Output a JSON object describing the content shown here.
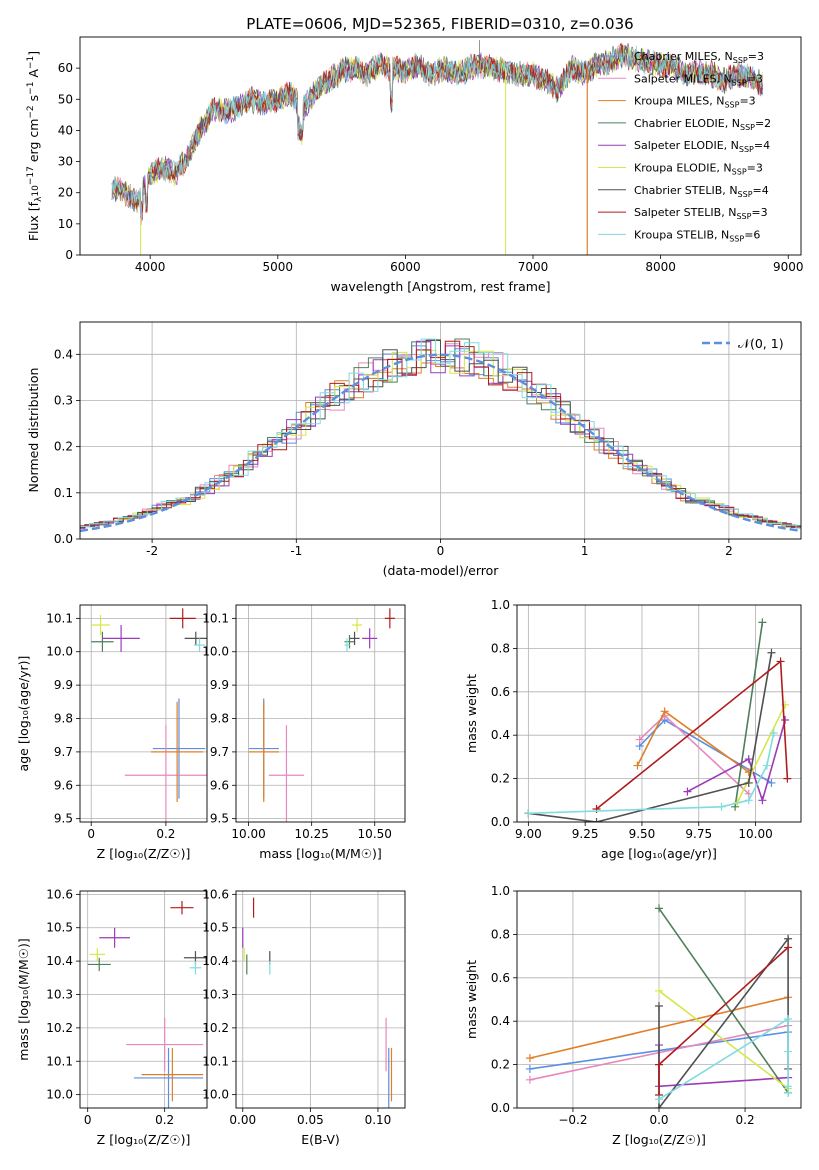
{
  "title": "PLATE=0606, MJD=52365, FIBERID=0310, z=0.036",
  "colors": {
    "Chabrier MILES": "#5b8fe0",
    "Salpeter MILES": "#e887bd",
    "Kroupa MILES": "#e07f27",
    "Chabrier ELODIE": "#4f7f5a",
    "Salpeter ELODIE": "#9b3ab8",
    "Kroupa ELODIE": "#d7e64a",
    "Chabrier STELIB": "#505050",
    "Salpeter STELIB": "#b01c1c",
    "Kroupa STELIB": "#7fdce0"
  },
  "chart_data": [
    {
      "id": "spectrum",
      "type": "line",
      "xlabel": "wavelength [Angstrom, rest frame]",
      "ylabel_main": "Flux [f",
      "ylabel_sub": "λ",
      "ylabel_mid": "10",
      "ylabel_sup1": "−17",
      "ylabel_rest": " erg cm",
      "ylabel_sup2": "−2",
      "ylabel_rest2": " s",
      "ylabel_sup3": "−1",
      "ylabel_rest3": " A",
      "ylabel_sup4": "−1",
      "ylabel_end": "]",
      "xlim": [
        3450,
        9100
      ],
      "ylim": [
        0,
        70
      ],
      "xticks": [
        4000,
        5000,
        6000,
        7000,
        8000,
        9000
      ],
      "yticks": [
        0,
        10,
        20,
        30,
        40,
        50,
        60
      ],
      "continuum": [
        [
          3700,
          22
        ],
        [
          3800,
          20
        ],
        [
          3900,
          17
        ],
        [
          4000,
          26
        ],
        [
          4100,
          28
        ],
        [
          4200,
          26
        ],
        [
          4300,
          32
        ],
        [
          4400,
          41
        ],
        [
          4500,
          47
        ],
        [
          4600,
          46
        ],
        [
          4700,
          48
        ],
        [
          4800,
          50
        ],
        [
          4900,
          48
        ],
        [
          5000,
          50
        ],
        [
          5100,
          52
        ],
        [
          5200,
          47
        ],
        [
          5300,
          53
        ],
        [
          5400,
          56
        ],
        [
          5500,
          59
        ],
        [
          5600,
          60
        ],
        [
          5700,
          58
        ],
        [
          5800,
          61
        ],
        [
          5900,
          60
        ],
        [
          6000,
          59
        ],
        [
          6100,
          61
        ],
        [
          6200,
          58
        ],
        [
          6300,
          60
        ],
        [
          6400,
          58
        ],
        [
          6500,
          60
        ],
        [
          6600,
          61
        ],
        [
          6700,
          60
        ],
        [
          6800,
          59
        ],
        [
          6900,
          58
        ],
        [
          7000,
          58
        ],
        [
          7100,
          56
        ],
        [
          7200,
          53
        ],
        [
          7300,
          60
        ],
        [
          7400,
          58
        ],
        [
          7500,
          61
        ],
        [
          7600,
          62
        ],
        [
          7700,
          64
        ],
        [
          7800,
          63
        ],
        [
          7900,
          62
        ],
        [
          8000,
          61
        ],
        [
          8100,
          61
        ],
        [
          8200,
          58
        ],
        [
          8300,
          59
        ],
        [
          8400,
          58
        ],
        [
          8500,
          56
        ],
        [
          8600,
          58
        ],
        [
          8700,
          57
        ],
        [
          8800,
          55
        ]
      ],
      "legend": [
        {
          "name": "Chabrier MILES",
          "nssp": "3",
          "color": "#5b8fe0"
        },
        {
          "name": "Salpeter MILES",
          "nssp": "3",
          "color": "#e887bd"
        },
        {
          "name": "Kroupa MILES",
          "nssp": "3",
          "color": "#e07f27"
        },
        {
          "name": "Chabrier ELODIE",
          "nssp": "2",
          "color": "#4f7f5a"
        },
        {
          "name": "Salpeter ELODIE",
          "nssp": "4",
          "color": "#9b3ab8"
        },
        {
          "name": "Kroupa ELODIE",
          "nssp": "3",
          "color": "#d7e64a"
        },
        {
          "name": "Chabrier STELIB",
          "nssp": "4",
          "color": "#505050"
        },
        {
          "name": "Salpeter STELIB",
          "nssp": "3",
          "color": "#b01c1c"
        },
        {
          "name": "Kroupa STELIB",
          "nssp": "6",
          "color": "#7fdce0"
        }
      ],
      "legend_prefix": "N",
      "legend_sub": "SSP",
      "legend_eq": "="
    },
    {
      "id": "residuals",
      "type": "step",
      "xlabel": "(data-model)/error",
      "ylabel": "Normed distribution",
      "xlim": [
        -2.5,
        2.5
      ],
      "ylim": [
        0,
        0.47
      ],
      "xticks": [
        -2,
        -1,
        0,
        1,
        2
      ],
      "yticks": [
        0.0,
        0.1,
        0.2,
        0.3,
        0.4
      ],
      "legend": "𝒩(0, 1)",
      "normal_curve": {
        "mean": 0,
        "std": 1,
        "color": "#5b8fe0"
      }
    },
    {
      "id": "age-vs-Z",
      "type": "errorbar",
      "xlabel": "Z [log₁₀(Z/Z☉)]",
      "ylabel": "age  [log₁₀(age/yr)]",
      "xlim": [
        -0.03,
        0.31
      ],
      "ylim": [
        9.49,
        10.14
      ],
      "xticks": [
        0.0,
        0.2
      ],
      "yticks": [
        9.5,
        9.6,
        9.7,
        9.8,
        9.9,
        10.0,
        10.1
      ],
      "points": [
        {
          "series": "Chabrier MILES",
          "x": 0.235,
          "y": 9.71,
          "xerr": 0.07,
          "yerr": 0.15
        },
        {
          "series": "Salpeter MILES",
          "x": 0.2,
          "y": 9.63,
          "xerr": 0.11,
          "yerr": 0.15
        },
        {
          "series": "Kroupa MILES",
          "x": 0.23,
          "y": 9.7,
          "xerr": 0.07,
          "yerr": 0.15
        },
        {
          "series": "Chabrier ELODIE",
          "x": 0.03,
          "y": 10.03,
          "xerr": 0.03,
          "yerr": 0.03
        },
        {
          "series": "Salpeter ELODIE",
          "x": 0.08,
          "y": 10.04,
          "xerr": 0.05,
          "yerr": 0.04
        },
        {
          "series": "Kroupa ELODIE",
          "x": 0.025,
          "y": 10.08,
          "xerr": 0.025,
          "yerr": 0.03
        },
        {
          "series": "Chabrier STELIB",
          "x": 0.28,
          "y": 10.04,
          "xerr": 0.03,
          "yerr": 0.02
        },
        {
          "series": "Salpeter STELIB",
          "x": 0.245,
          "y": 10.1,
          "xerr": 0.035,
          "yerr": 0.03
        },
        {
          "series": "Kroupa STELIB",
          "x": 0.29,
          "y": 10.02,
          "xerr": 0.015,
          "yerr": 0.02
        }
      ]
    },
    {
      "id": "age-vs-mass",
      "type": "errorbar",
      "xlabel": "mass [log₁₀(M/M☉)]",
      "xlim": [
        9.95,
        10.62
      ],
      "ylim": [
        9.49,
        10.14
      ],
      "xticks": [
        10.0,
        10.25,
        10.5
      ],
      "xtick_labels": [
        "10.00",
        "10.25",
        "10.50"
      ],
      "yticks": [
        9.5,
        9.6,
        9.7,
        9.8,
        9.9,
        10.0,
        10.1
      ],
      "points": [
        {
          "series": "Chabrier MILES",
          "x": 10.06,
          "y": 9.71,
          "xerr": 0.06,
          "yerr": 0.15
        },
        {
          "series": "Salpeter MILES",
          "x": 10.15,
          "y": 9.63,
          "xerr": 0.07,
          "yerr": 0.15
        },
        {
          "series": "Kroupa MILES",
          "x": 10.06,
          "y": 9.7,
          "xerr": 0.06,
          "yerr": 0.15
        },
        {
          "series": "Chabrier ELODIE",
          "x": 10.4,
          "y": 10.03,
          "xerr": 0.02,
          "yerr": 0.02
        },
        {
          "series": "Salpeter ELODIE",
          "x": 10.48,
          "y": 10.04,
          "xerr": 0.03,
          "yerr": 0.03
        },
        {
          "series": "Kroupa ELODIE",
          "x": 10.43,
          "y": 10.08,
          "xerr": 0.02,
          "yerr": 0.02
        },
        {
          "series": "Chabrier STELIB",
          "x": 10.42,
          "y": 10.04,
          "xerr": 0.02,
          "yerr": 0.02
        },
        {
          "series": "Salpeter STELIB",
          "x": 10.56,
          "y": 10.1,
          "xerr": 0.02,
          "yerr": 0.03
        },
        {
          "series": "Kroupa STELIB",
          "x": 10.39,
          "y": 10.02,
          "xerr": 0.01,
          "yerr": 0.02
        }
      ]
    },
    {
      "id": "massweight-vs-age",
      "type": "line",
      "xlabel": "age  [log₁₀(age/yr)]",
      "ylabel": "mass weight",
      "xlim": [
        8.95,
        10.2
      ],
      "ylim": [
        0,
        1.0
      ],
      "xticks": [
        9.0,
        9.25,
        9.5,
        9.75,
        10.0
      ],
      "xtick_labels": [
        "9.00",
        "9.25",
        "9.50",
        "9.75",
        "10.00"
      ],
      "yticks": [
        0.0,
        0.2,
        0.4,
        0.6,
        0.8,
        1.0
      ],
      "series": [
        {
          "name": "Chabrier MILES",
          "x": [
            9.49,
            9.6,
            10.07
          ],
          "y": [
            0.35,
            0.47,
            0.18
          ]
        },
        {
          "name": "Salpeter MILES",
          "x": [
            9.49,
            9.6,
            9.97
          ],
          "y": [
            0.38,
            0.49,
            0.13
          ]
        },
        {
          "name": "Kroupa MILES",
          "x": [
            9.48,
            9.6,
            9.97
          ],
          "y": [
            0.26,
            0.51,
            0.23
          ]
        },
        {
          "name": "Chabrier ELODIE",
          "x": [
            9.91,
            10.03
          ],
          "y": [
            0.07,
            0.92
          ]
        },
        {
          "name": "Salpeter ELODIE",
          "x": [
            9.7,
            9.97,
            10.03,
            10.13
          ],
          "y": [
            0.14,
            0.29,
            0.1,
            0.47
          ]
        },
        {
          "name": "Kroupa ELODIE",
          "x": [
            9.92,
            10.13
          ],
          "y": [
            0.09,
            0.54
          ]
        },
        {
          "name": "Chabrier STELIB",
          "x": [
            9.0,
            9.3,
            9.97,
            10.07
          ],
          "y": [
            0.04,
            0.0,
            0.18,
            0.78
          ]
        },
        {
          "name": "Salpeter STELIB",
          "x": [
            9.3,
            10.11,
            10.14
          ],
          "y": [
            0.06,
            0.74,
            0.2
          ]
        },
        {
          "name": "Kroupa STELIB",
          "x": [
            9.0,
            9.85,
            9.97,
            10.05,
            10.08
          ],
          "y": [
            0.04,
            0.07,
            0.1,
            0.26,
            0.41
          ]
        }
      ]
    },
    {
      "id": "mass-vs-Z",
      "type": "errorbar",
      "xlabel": "Z [log₁₀(Z/Z☉)]",
      "ylabel": "mass [log₁₀(M/M☉)]",
      "xlim": [
        -0.02,
        0.31
      ],
      "ylim": [
        9.96,
        10.61
      ],
      "xticks": [
        0.0,
        0.2
      ],
      "yticks": [
        10.0,
        10.1,
        10.2,
        10.3,
        10.4,
        10.5,
        10.6
      ],
      "points": [
        {
          "series": "Chabrier MILES",
          "x": 0.21,
          "y": 10.05,
          "xerr": 0.09,
          "yerr": 0.09
        },
        {
          "series": "Salpeter MILES",
          "x": 0.2,
          "y": 10.15,
          "xerr": 0.1,
          "yerr": 0.08
        },
        {
          "series": "Kroupa MILES",
          "x": 0.22,
          "y": 10.06,
          "xerr": 0.08,
          "yerr": 0.08
        },
        {
          "series": "Chabrier ELODIE",
          "x": 0.03,
          "y": 10.39,
          "xerr": 0.03,
          "yerr": 0.02
        },
        {
          "series": "Salpeter ELODIE",
          "x": 0.07,
          "y": 10.47,
          "xerr": 0.04,
          "yerr": 0.03
        },
        {
          "series": "Kroupa ELODIE",
          "x": 0.025,
          "y": 10.42,
          "xerr": 0.02,
          "yerr": 0.02
        },
        {
          "series": "Chabrier STELIB",
          "x": 0.28,
          "y": 10.41,
          "xerr": 0.03,
          "yerr": 0.02
        },
        {
          "series": "Salpeter STELIB",
          "x": 0.245,
          "y": 10.56,
          "xerr": 0.03,
          "yerr": 0.02
        },
        {
          "series": "Kroupa STELIB",
          "x": 0.28,
          "y": 10.38,
          "xerr": 0.015,
          "yerr": 0.02
        }
      ]
    },
    {
      "id": "mass-vs-ebv",
      "type": "errorbar",
      "xlabel": "E(B-V)",
      "xlim": [
        -0.005,
        0.12
      ],
      "ylim": [
        9.96,
        10.61
      ],
      "xticks": [
        0.0,
        0.05,
        0.1
      ],
      "xtick_labels": [
        "0.00",
        "0.05",
        "0.10"
      ],
      "yticks": [
        10.0,
        10.1,
        10.2,
        10.3,
        10.4,
        10.5,
        10.6
      ],
      "points": [
        {
          "series": "Chabrier MILES",
          "x": 0.108,
          "y": 10.05,
          "xerr": 0,
          "yerr": 0.09
        },
        {
          "series": "Salpeter MILES",
          "x": 0.106,
          "y": 10.15,
          "xerr": 0,
          "yerr": 0.08
        },
        {
          "series": "Kroupa MILES",
          "x": 0.11,
          "y": 10.06,
          "xerr": 0,
          "yerr": 0.08
        },
        {
          "series": "Chabrier ELODIE",
          "x": 0.003,
          "y": 10.39,
          "xerr": 0,
          "yerr": 0.03
        },
        {
          "series": "Salpeter ELODIE",
          "x": 0.0,
          "y": 10.47,
          "xerr": 0,
          "yerr": 0.03
        },
        {
          "series": "Kroupa ELODIE",
          "x": 0.001,
          "y": 10.42,
          "xerr": 0,
          "yerr": 0.02
        },
        {
          "series": "Chabrier STELIB",
          "x": 0.02,
          "y": 10.41,
          "xerr": 0,
          "yerr": 0.02
        },
        {
          "series": "Salpeter STELIB",
          "x": 0.008,
          "y": 10.56,
          "xerr": 0,
          "yerr": 0.03
        },
        {
          "series": "Kroupa STELIB",
          "x": 0.02,
          "y": 10.38,
          "xerr": 0,
          "yerr": 0.02
        }
      ]
    },
    {
      "id": "massweight-vs-Z",
      "type": "line",
      "xlabel": "Z [log₁₀(Z/Z☉)]",
      "ylabel": "mass weight",
      "xlim": [
        -0.33,
        0.33
      ],
      "ylim": [
        0,
        1.0
      ],
      "xticks": [
        -0.2,
        0.0,
        0.2
      ],
      "xtick_labels": [
        "−0.2",
        "0.0",
        "0.2"
      ],
      "yticks": [
        0.0,
        0.2,
        0.4,
        0.6,
        0.8,
        1.0
      ],
      "series": [
        {
          "name": "Chabrier MILES",
          "x": [
            -0.3,
            0.3
          ],
          "y": [
            0.18,
            0.35
          ]
        },
        {
          "name": "Salpeter MILES",
          "x": [
            -0.3,
            0.3
          ],
          "y": [
            0.13,
            0.38
          ]
        },
        {
          "name": "Kroupa MILES",
          "x": [
            -0.3,
            0.3
          ],
          "y": [
            0.23,
            0.51
          ]
        },
        {
          "name": "Chabrier ELODIE",
          "x": [
            0.0,
            0.3
          ],
          "y": [
            0.92,
            0.07
          ]
        },
        {
          "name": "Salpeter ELODIE",
          "x": [
            0.0,
            0.0,
            0.3
          ],
          "y": [
            0.29,
            0.1,
            0.14
          ]
        },
        {
          "name": "Kroupa ELODIE",
          "x": [
            0.0,
            0.3
          ],
          "y": [
            0.54,
            0.09
          ]
        },
        {
          "name": "Chabrier STELIB",
          "x": [
            0.0,
            0.0,
            0.3,
            0.3
          ],
          "y": [
            0.47,
            0.0,
            0.78,
            0.18
          ]
        },
        {
          "name": "Salpeter STELIB",
          "x": [
            0.0,
            0.0,
            0.3
          ],
          "y": [
            0.06,
            0.2,
            0.74
          ]
        },
        {
          "name": "Kroupa STELIB",
          "x": [
            0.0,
            0.3,
            0.3,
            0.3,
            0.3
          ],
          "y": [
            0.04,
            0.41,
            0.26,
            0.1,
            0.07
          ]
        }
      ]
    }
  ]
}
